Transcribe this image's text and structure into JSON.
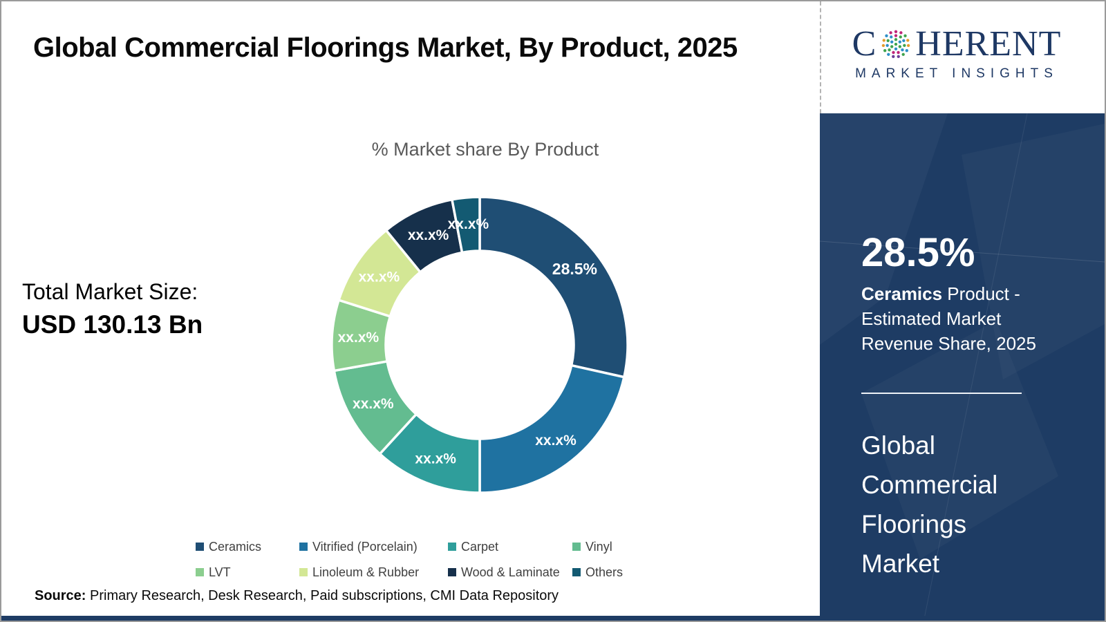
{
  "header": {
    "title": "Global Commercial Floorings Market, By Product, 2025",
    "brand": {
      "wordmark_left": "C",
      "wordmark_right": "HERENT",
      "subtitle": "MARKET INSIGHTS",
      "navy": "#1E3864",
      "dot_colors": [
        "#3FA34D",
        "#2E8FC7",
        "#C02578",
        "#E59B2C",
        "#6C3F97"
      ]
    }
  },
  "left_section": {
    "chart_title": "% Market share By Product",
    "total_market_label": "Total Market Size:",
    "total_market_value": "USD 130.13 Bn",
    "source": {
      "prefix": "Source:",
      "text": " Primary Research, Desk Research, Paid subscriptions, CMI Data Repository"
    }
  },
  "chart_data": {
    "type": "pie",
    "subtype": "donut",
    "title": "% Market share By Product",
    "legend_position": "bottom",
    "start_angle_deg": 0,
    "direction": "clockwise",
    "segments": [
      {
        "name": "Ceramics",
        "label": "28.5%",
        "value": 28.5,
        "color": "#1F4E74"
      },
      {
        "name": "Vitrified (Porcelain)",
        "label": "xx.x%",
        "value": 21.5,
        "color": "#1F72A1"
      },
      {
        "name": "Carpet",
        "label": "xx.x%",
        "value": 11.8,
        "color": "#2F9E9B"
      },
      {
        "name": "Vinyl",
        "label": "xx.x%",
        "value": 10.4,
        "color": "#63BC90"
      },
      {
        "name": "LVT",
        "label": "xx.x%",
        "value": 7.7,
        "color": "#8CCE8F"
      },
      {
        "name": "Linoleum & Rubber",
        "label": "xx.x%",
        "value": 9.2,
        "color": "#D3E795"
      },
      {
        "name": "Wood & Laminate",
        "label": "xx.x%",
        "value": 7.9,
        "color": "#16304B"
      },
      {
        "name": "Others",
        "label": "xx.x%",
        "value": 3.0,
        "color": "#135A72"
      }
    ],
    "note": "Only the Ceramics share (28.5%) is shown; other slice labels are masked as xx.x%. Slice values estimated from arc angles."
  },
  "sidebar": {
    "background": "#1E3C64",
    "stat_value": "28.5%",
    "stat_bold": "Ceramics",
    "stat_rest": " Product - Estimated Market Revenue Share, 2025",
    "market_name": "Global Commercial Floorings Market"
  }
}
